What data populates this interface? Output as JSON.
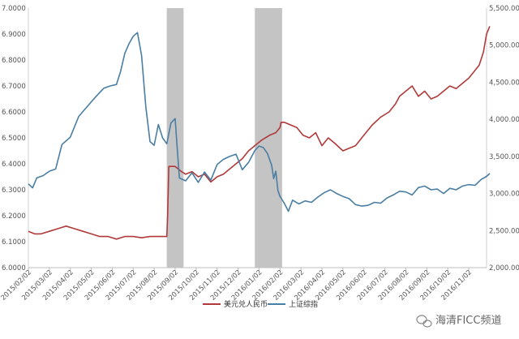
{
  "chart_data": {
    "type": "line",
    "grid": false,
    "legend_position": "bottom",
    "x_categories": [
      "2015/02/02",
      "2015/03/02",
      "2015/04/02",
      "2015/05/02",
      "2015/06/02",
      "2015/07/02",
      "2015/08/02",
      "2015/09/02",
      "2015/10/02",
      "2015/11/02",
      "2015/12/02",
      "2016/01/02",
      "2016/02/02",
      "2016/03/02",
      "2016/04/02",
      "2016/05/02",
      "2016/06/02",
      "2016/07/02",
      "2016/08/02",
      "2016/09/02",
      "2016/10/02",
      "2016/11/02"
    ],
    "y_left": {
      "range": [
        6.0,
        6.95
      ],
      "tick_labels": [
        "6.0000",
        "6.1000",
        "6.2000",
        "6.3000",
        "6.4000",
        "6.5000",
        "6.6000",
        "6.7000",
        "6.8000",
        "6.9000",
        "7.0000"
      ],
      "tick_values": [
        6.0,
        6.1,
        6.2,
        6.3,
        6.4,
        6.5,
        6.6,
        6.7,
        6.8,
        6.9,
        7.0
      ]
    },
    "y_right": {
      "range": [
        2000,
        5500
      ],
      "tick_labels": [
        "2,000.00",
        "2,500.00",
        "3,000.00",
        "3,500.00",
        "4,000.00",
        "4,500.00",
        "5,000.00",
        "5,500.00"
      ],
      "tick_values": [
        2000,
        2500,
        3000,
        3500,
        4000,
        4500,
        5000,
        5500
      ]
    },
    "shaded_periods": [
      {
        "start": 6.6,
        "end": 7.4
      },
      {
        "start": 10.8,
        "end": 12.1
      }
    ],
    "series": [
      {
        "name": "美元兑人民币",
        "axis": "left",
        "color": "#b03a3a",
        "x": [
          0,
          0.3,
          0.6,
          1.0,
          1.4,
          1.8,
          2.2,
          2.6,
          3.0,
          3.4,
          3.8,
          4.2,
          4.6,
          5.0,
          5.4,
          5.8,
          6.2,
          6.6,
          6.64,
          6.7,
          7.0,
          7.3,
          7.5,
          7.8,
          8.1,
          8.4,
          8.7,
          9.0,
          9.3,
          9.6,
          9.9,
          10.2,
          10.5,
          10.8,
          11.1,
          11.5,
          11.8,
          12.0,
          12.05,
          12.2,
          12.5,
          12.8,
          13.1,
          13.4,
          13.7,
          14.0,
          14.3,
          14.6,
          15.0,
          15.3,
          15.6,
          16.0,
          16.4,
          16.8,
          17.2,
          17.5,
          17.7,
          18.0,
          18.3,
          18.6,
          18.9,
          19.2,
          19.5,
          19.8,
          20.1,
          20.4,
          20.7,
          21.0,
          21.3,
          21.5,
          21.7,
          21.85,
          22.0
        ],
        "y": [
          6.14,
          6.13,
          6.13,
          6.14,
          6.15,
          6.16,
          6.15,
          6.14,
          6.13,
          6.12,
          6.12,
          6.11,
          6.12,
          6.12,
          6.115,
          6.12,
          6.12,
          6.12,
          6.2,
          6.39,
          6.39,
          6.37,
          6.36,
          6.37,
          6.35,
          6.36,
          6.33,
          6.35,
          6.36,
          6.38,
          6.4,
          6.42,
          6.45,
          6.47,
          6.49,
          6.51,
          6.52,
          6.54,
          6.56,
          6.56,
          6.55,
          6.54,
          6.51,
          6.5,
          6.52,
          6.47,
          6.5,
          6.48,
          6.45,
          6.46,
          6.47,
          6.51,
          6.55,
          6.58,
          6.6,
          6.63,
          6.66,
          6.68,
          6.7,
          6.66,
          6.68,
          6.65,
          6.66,
          6.68,
          6.7,
          6.69,
          6.71,
          6.73,
          6.76,
          6.78,
          6.83,
          6.9,
          6.93
        ]
      },
      {
        "name": "上证综指",
        "axis": "right",
        "color": "#4a7ea3",
        "x": [
          0,
          0.2,
          0.4,
          0.7,
          1.0,
          1.3,
          1.6,
          2.0,
          2.4,
          2.8,
          3.2,
          3.6,
          3.9,
          4.2,
          4.4,
          4.6,
          4.8,
          5.0,
          5.2,
          5.4,
          5.6,
          5.8,
          6.0,
          6.2,
          6.4,
          6.6,
          6.8,
          7.0,
          7.1,
          7.2,
          7.5,
          7.8,
          8.1,
          8.4,
          8.7,
          9.0,
          9.3,
          9.6,
          9.9,
          10.2,
          10.5,
          10.8,
          11.0,
          11.2,
          11.4,
          11.6,
          11.7,
          11.8,
          11.9,
          12.0,
          12.2,
          12.4,
          12.6,
          12.9,
          13.2,
          13.5,
          13.8,
          14.1,
          14.4,
          14.7,
          15.0,
          15.3,
          15.6,
          15.9,
          16.2,
          16.5,
          16.8,
          17.1,
          17.4,
          17.7,
          18.0,
          18.3,
          18.6,
          18.9,
          19.2,
          19.5,
          19.8,
          20.1,
          20.4,
          20.7,
          21.0,
          21.3,
          21.6,
          21.85,
          22.0
        ],
        "y": [
          3130,
          3075,
          3210,
          3240,
          3300,
          3330,
          3660,
          3760,
          4040,
          4170,
          4300,
          4420,
          4450,
          4470,
          4650,
          4890,
          5020,
          5120,
          5170,
          4860,
          4170,
          3700,
          3650,
          3930,
          3750,
          3670,
          3950,
          4010,
          3600,
          3210,
          3170,
          3280,
          3150,
          3290,
          3180,
          3390,
          3460,
          3500,
          3530,
          3320,
          3420,
          3580,
          3640,
          3620,
          3540,
          3380,
          3200,
          3300,
          3040,
          2960,
          2870,
          2760,
          2910,
          2860,
          2900,
          2880,
          2950,
          3010,
          3050,
          3000,
          2960,
          2930,
          2850,
          2830,
          2840,
          2880,
          2870,
          2940,
          2980,
          3030,
          3020,
          2980,
          3080,
          3100,
          3050,
          3060,
          3000,
          3070,
          3050,
          3100,
          3120,
          3110,
          3190,
          3230,
          3270
        ]
      }
    ],
    "watermark": "海清FICC频道"
  }
}
